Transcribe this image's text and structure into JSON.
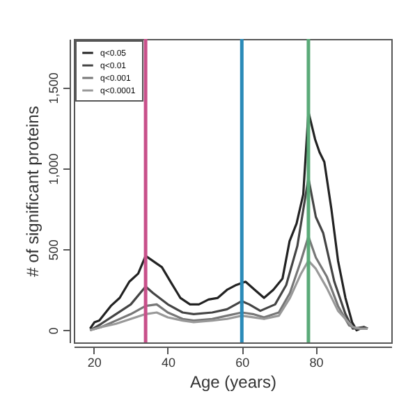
{
  "chart_data": {
    "type": "line",
    "xlabel": "Age (years)",
    "ylabel": "# of significant proteins",
    "xlim": [
      14.6,
      100.4
    ],
    "ylim": [
      -75,
      1800
    ],
    "xticks": [
      20,
      40,
      60,
      80
    ],
    "yticks": [
      0,
      500,
      {
        "value": 1000,
        "label": "1,000"
      },
      {
        "value": 1500,
        "label": "1,500"
      }
    ],
    "grid": false,
    "legend": "top left",
    "line_style": "solid",
    "marker": "none",
    "series": [
      {
        "name": "q<0.05",
        "color": "#222222",
        "x": [
          19,
          20.2,
          21.5,
          24.6,
          27,
          29.6,
          32,
          34,
          36.5,
          38.4,
          41,
          43.4,
          46,
          48.4,
          51,
          53.5,
          56,
          58.5,
          61,
          63.5,
          66,
          68.5,
          71,
          72.9,
          74.8,
          76.6,
          78,
          79.8,
          81,
          82.3,
          84.2,
          86,
          88,
          89.8,
          91,
          93,
          94
        ],
        "values": [
          10,
          50,
          60,
          150,
          200,
          300,
          350,
          460,
          420,
          390,
          290,
          200,
          160,
          160,
          190,
          200,
          250,
          280,
          300,
          250,
          200,
          250,
          320,
          550,
          660,
          840,
          1350,
          1180,
          1100,
          1040,
          750,
          430,
          200,
          50,
          0,
          20,
          10
        ]
      },
      {
        "name": "q<0.01",
        "color": "#444444",
        "x": [
          19,
          22,
          26,
          30,
          34,
          36,
          40,
          44,
          47,
          52,
          56,
          60,
          62,
          65,
          69,
          72,
          75,
          78,
          80,
          82,
          85,
          88,
          90,
          93,
          94
        ],
        "values": [
          0,
          40,
          100,
          160,
          270,
          230,
          160,
          110,
          100,
          110,
          130,
          180,
          160,
          120,
          160,
          280,
          520,
          940,
          700,
          600,
          300,
          100,
          10,
          20,
          10
        ]
      },
      {
        "name": "q<0.001",
        "color": "#777777",
        "x": [
          19,
          22,
          26,
          30,
          34,
          37,
          40,
          44,
          47,
          52,
          56,
          60,
          63,
          66,
          70,
          73,
          76,
          78,
          80,
          83,
          86,
          89,
          91,
          94
        ],
        "values": [
          0,
          20,
          60,
          100,
          150,
          160,
          110,
          70,
          60,
          70,
          90,
          110,
          100,
          80,
          110,
          230,
          430,
          580,
          450,
          330,
          150,
          30,
          10,
          10
        ]
      },
      {
        "name": "q<0.0001",
        "color": "#999999",
        "x": [
          19,
          22,
          26,
          30,
          34,
          37,
          40,
          44,
          47,
          52,
          56,
          60,
          63,
          66,
          70,
          73,
          76,
          78,
          80,
          83,
          86,
          90,
          92,
          94
        ],
        "values": [
          0,
          20,
          40,
          70,
          100,
          110,
          80,
          60,
          50,
          60,
          70,
          90,
          80,
          70,
          90,
          200,
          350,
          430,
          380,
          260,
          120,
          20,
          10,
          10
        ]
      }
    ],
    "ref_lines": [
      {
        "axis": "x",
        "value": 34,
        "color": "#c8508a"
      },
      {
        "axis": "x",
        "value": 60,
        "color": "#2a8ab8"
      },
      {
        "axis": "x",
        "value": 78,
        "color": "#5aaa78"
      }
    ]
  }
}
